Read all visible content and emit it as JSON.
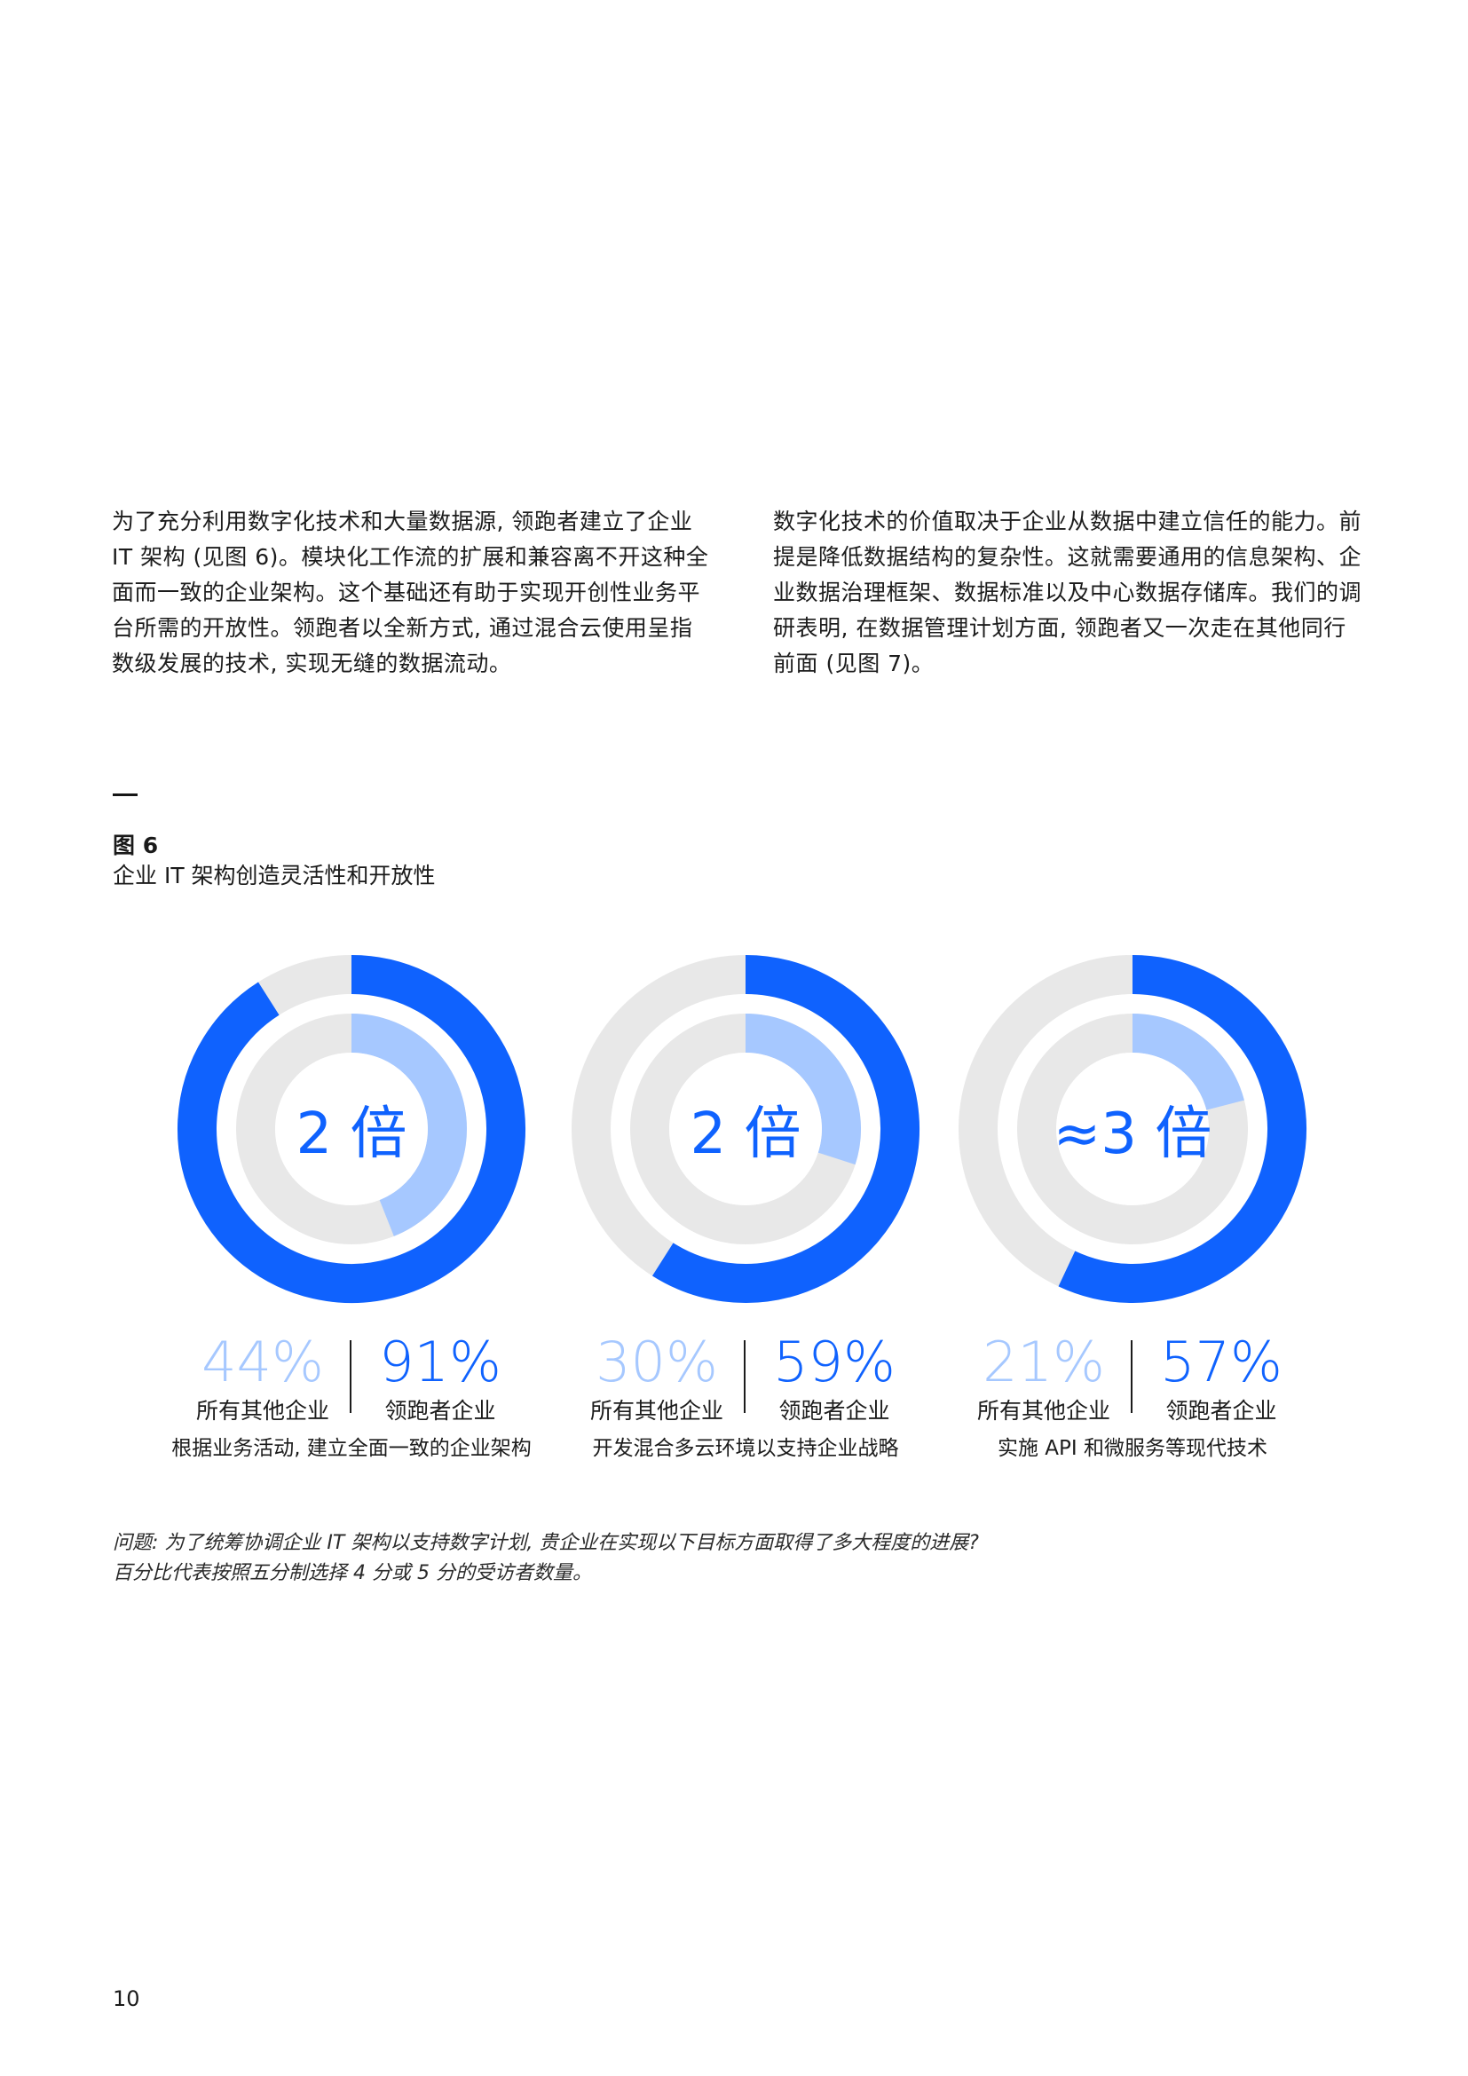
{
  "paragraphs": {
    "left": "为了充分利用数字化技术和大量数据源, 领跑者建立了企业 IT 架构 (见图 6)。模块化工作流的扩展和兼容离不开这种全面而一致的企业架构。这个基础还有助于实现开创性业务平台所需的开放性。领跑者以全新方式, 通过混合云使用呈指数级发展的技术, 实现无缝的数据流动。",
    "right": "数字化技术的价值取决于企业从数据中建立信任的能力。前提是降低数据结构的复杂性。这就需要通用的信息架构、企业数据治理框架、数据标准以及中心数据存储库。我们的调研表明, 在数据管理计划方面, 领跑者又一次走在其他同行前面 (见图 7)。"
  },
  "figure": {
    "label": "图 6",
    "title": "企业 IT 架构创造灵活性和开放性"
  },
  "colors": {
    "leader": "#0f62fe",
    "other": "#a6c8ff",
    "track": "#e8e8e8"
  },
  "chart_data": [
    {
      "type": "pie",
      "title": "2 倍",
      "series": [
        {
          "name": "所有其他企业",
          "value": 44,
          "label": "44%"
        },
        {
          "name": "领跑者企业",
          "value": 91,
          "label": "91%"
        }
      ],
      "caption": "根据业务活动, 建立全面一致的企业架构"
    },
    {
      "type": "pie",
      "title": "2 倍",
      "series": [
        {
          "name": "所有其他企业",
          "value": 30,
          "label": "30%"
        },
        {
          "name": "领跑者企业",
          "value": 59,
          "label": "59%"
        }
      ],
      "caption": "开发混合多云环境以支持企业战略"
    },
    {
      "type": "pie",
      "title": "≈3 倍",
      "series": [
        {
          "name": "所有其他企业",
          "value": 21,
          "label": "21%"
        },
        {
          "name": "领跑者企业",
          "value": 57,
          "label": "57%"
        }
      ],
      "caption": "实施 API 和微服务等现代技术"
    }
  ],
  "footnote": {
    "line1": "问题: 为了统筹协调企业 IT 架构以支持数字计划, 贵企业在实现以下目标方面取得了多大程度的进展?",
    "line2": "百分比代表按照五分制选择 4 分或 5 分的受访者数量。"
  },
  "page_number": "10"
}
